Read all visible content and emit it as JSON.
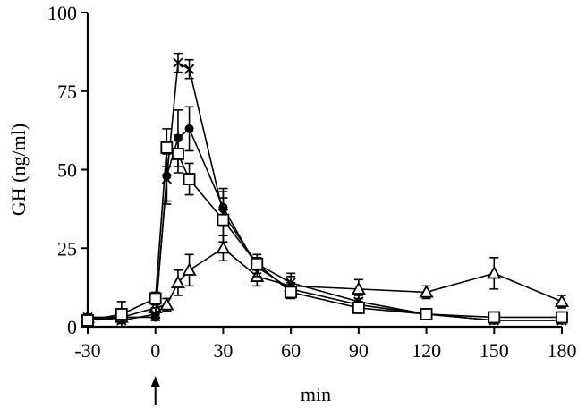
{
  "chart_data": {
    "type": "line",
    "xlabel": "min",
    "ylabel": "GH (ng/ml)",
    "xlim": [
      -30,
      180
    ],
    "ylim": [
      0,
      100
    ],
    "x_ticks": [
      "-30",
      "0",
      "30",
      "60",
      "90",
      "120",
      "150",
      "180"
    ],
    "y_ticks": [
      "0",
      "25",
      "50",
      "75",
      "100"
    ],
    "grid": false,
    "annotations": [
      {
        "type": "arrow",
        "x": 0,
        "direction": "up"
      }
    ],
    "series": [
      {
        "marker": "open-triangle",
        "x": [
          -30,
          -15,
          0,
          5,
          10,
          15,
          30,
          45,
          60,
          90,
          120,
          150,
          180
        ],
        "y": [
          3,
          3,
          6,
          7,
          14,
          18,
          25,
          16,
          13,
          12,
          11,
          17,
          8
        ],
        "err": [
          1,
          1,
          2,
          2,
          4,
          5,
          4,
          3,
          3,
          3,
          2,
          5,
          2
        ]
      },
      {
        "marker": "cross",
        "x": [
          -30,
          -15,
          0,
          5,
          10,
          15,
          30,
          45,
          60,
          90,
          120,
          150,
          180
        ],
        "y": [
          3,
          2,
          4,
          47,
          84,
          82,
          36,
          20,
          14,
          8,
          4,
          2,
          2
        ],
        "err": [
          1,
          1,
          2,
          8,
          3,
          3,
          7,
          3,
          3,
          2,
          1,
          1,
          1
        ]
      },
      {
        "marker": "filled-circle",
        "x": [
          -30,
          -15,
          0,
          5,
          10,
          15,
          30,
          45,
          60,
          90,
          120,
          150,
          180
        ],
        "y": [
          2,
          3,
          3,
          48,
          60,
          63,
          38,
          19,
          12,
          7,
          4,
          2,
          2
        ],
        "err": [
          1,
          1,
          1,
          8,
          9,
          7,
          6,
          3,
          2,
          1,
          1,
          1,
          1
        ]
      },
      {
        "marker": "open-square",
        "x": [
          -30,
          -15,
          0,
          5,
          10,
          15,
          30,
          45,
          60,
          90,
          120,
          150,
          180
        ],
        "y": [
          2,
          4,
          9,
          57,
          55,
          47,
          34,
          20,
          11,
          6,
          4,
          3,
          3
        ],
        "err": [
          1,
          4,
          2,
          6,
          6,
          5,
          7,
          2,
          2,
          1,
          1,
          1,
          1
        ]
      }
    ]
  }
}
